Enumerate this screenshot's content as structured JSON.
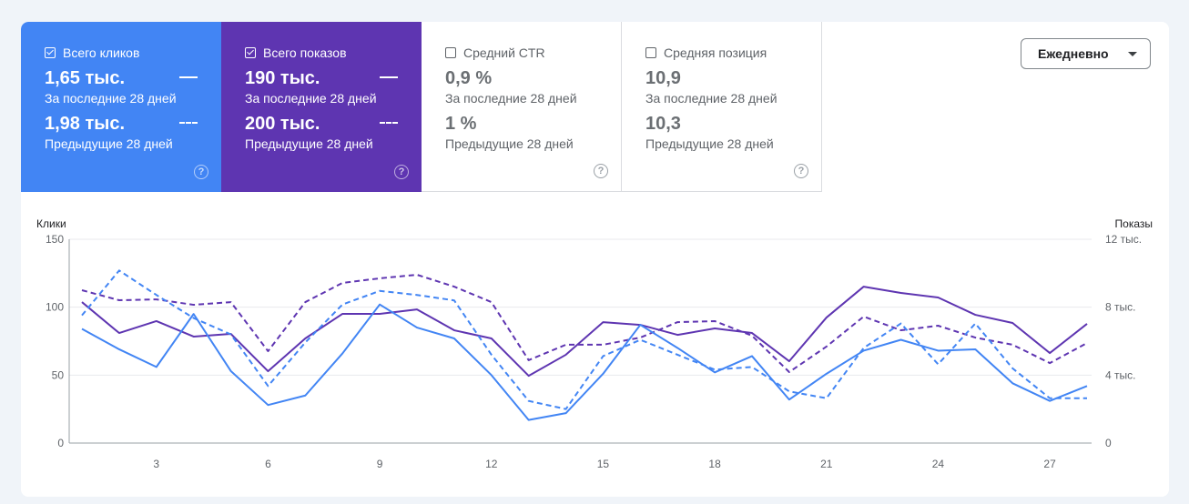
{
  "metrics": [
    {
      "label": "Всего кликов",
      "checked": true,
      "current": "1,65 тыс.",
      "current_label": "За последние 28 дней",
      "previous": "1,98 тыс.",
      "previous_label": "Предыдущие 28 дней",
      "help": "?"
    },
    {
      "label": "Всего показов",
      "checked": true,
      "current": "190 тыс.",
      "current_label": "За последние 28 дней",
      "previous": "200 тыс.",
      "previous_label": "Предыдущие 28 дней",
      "help": "?"
    },
    {
      "label": "Средний CTR",
      "checked": false,
      "current": "0,9 %",
      "current_label": "За последние 28 дней",
      "previous": "1 %",
      "previous_label": "Предыдущие 28 дней",
      "help": "?"
    },
    {
      "label": "Средняя позиция",
      "checked": false,
      "current": "10,9",
      "current_label": "За последние 28 дней",
      "previous": "10,3",
      "previous_label": "Предыдущие 28 дней",
      "help": "?"
    }
  ],
  "granularity": "Ежедневно",
  "colors": {
    "clicks": "#4285f4",
    "impressions": "#5e35b1"
  },
  "chart_data": {
    "type": "line",
    "left_axis_label": "Клики",
    "right_axis_label": "Показы",
    "left_ylim": [
      0,
      150
    ],
    "right_ylim": [
      0,
      12000
    ],
    "left_ticks": [
      "0",
      "50",
      "100",
      "150"
    ],
    "right_ticks": [
      "0",
      "4 тыс.",
      "8 тыс.",
      "12 тыс."
    ],
    "x": [
      1,
      2,
      3,
      4,
      5,
      6,
      7,
      8,
      9,
      10,
      11,
      12,
      13,
      14,
      15,
      16,
      17,
      18,
      19,
      20,
      21,
      22,
      23,
      24,
      25,
      26,
      27,
      28
    ],
    "x_ticks": [
      "3",
      "6",
      "9",
      "12",
      "15",
      "18",
      "21",
      "24",
      "27"
    ],
    "series": [
      {
        "name": "Клики (последние 28 дней)",
        "axis": "left",
        "style": "solid",
        "color": "#4285f4",
        "values": [
          84,
          69,
          56,
          95,
          53,
          28,
          35,
          66,
          102,
          85,
          77,
          50,
          17,
          22,
          51,
          87,
          70,
          52,
          64,
          32,
          51,
          68,
          76,
          68,
          69,
          44,
          31,
          42
        ]
      },
      {
        "name": "Клики (предыдущие 28 дней)",
        "axis": "left",
        "style": "dashed",
        "color": "#4285f4",
        "values": [
          94,
          127,
          109,
          92,
          80,
          42,
          74,
          102,
          112,
          109,
          105,
          65,
          31,
          25,
          64,
          76,
          65,
          54,
          56,
          38,
          33,
          70,
          88,
          58,
          88,
          55,
          33,
          33
        ]
      },
      {
        "name": "Показы (последние 28 дней)",
        "axis": "right",
        "style": "solid",
        "color": "#5e35b1",
        "values": [
          8300,
          6480,
          7180,
          6270,
          6430,
          4230,
          6160,
          7610,
          7610,
          7870,
          6640,
          6160,
          3960,
          5200,
          7120,
          6960,
          6370,
          6750,
          6480,
          4820,
          7390,
          9210,
          8840,
          8570,
          7550,
          7070,
          5300,
          7020
        ]
      },
      {
        "name": "Показы (предыдущие 28 дней)",
        "axis": "right",
        "style": "dashed",
        "color": "#5e35b1",
        "values": [
          9000,
          8410,
          8460,
          8140,
          8300,
          5410,
          8300,
          9430,
          9700,
          9910,
          9210,
          8300,
          4880,
          5790,
          5790,
          6210,
          7120,
          7180,
          6320,
          4180,
          5680,
          7450,
          6640,
          6910,
          6210,
          5790,
          4710,
          5890
        ]
      }
    ]
  }
}
